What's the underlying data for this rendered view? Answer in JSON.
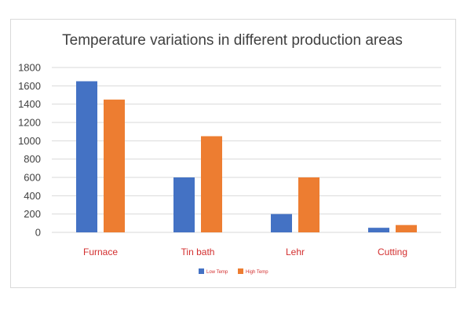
{
  "chart_data": {
    "type": "bar",
    "title": "Temperature variations in different production areas",
    "xlabel": "",
    "ylabel": "",
    "categories": [
      "Furnace",
      "Tin bath",
      "Lehr",
      "Cutting"
    ],
    "series": [
      {
        "name": "Low Temp",
        "values": [
          1650,
          600,
          200,
          50
        ],
        "color": "#4472c4"
      },
      {
        "name": "High Temp",
        "values": [
          1450,
          1050,
          600,
          80
        ],
        "color": "#ed7d31"
      }
    ],
    "ylim": [
      0,
      1800
    ],
    "yticks": [
      "0",
      "200",
      "400",
      "600",
      "800",
      "1000",
      "1200",
      "1400",
      "1600",
      "1800"
    ],
    "grid": true,
    "legend_position": "bottom",
    "category_label_color": "#d32f2f"
  }
}
